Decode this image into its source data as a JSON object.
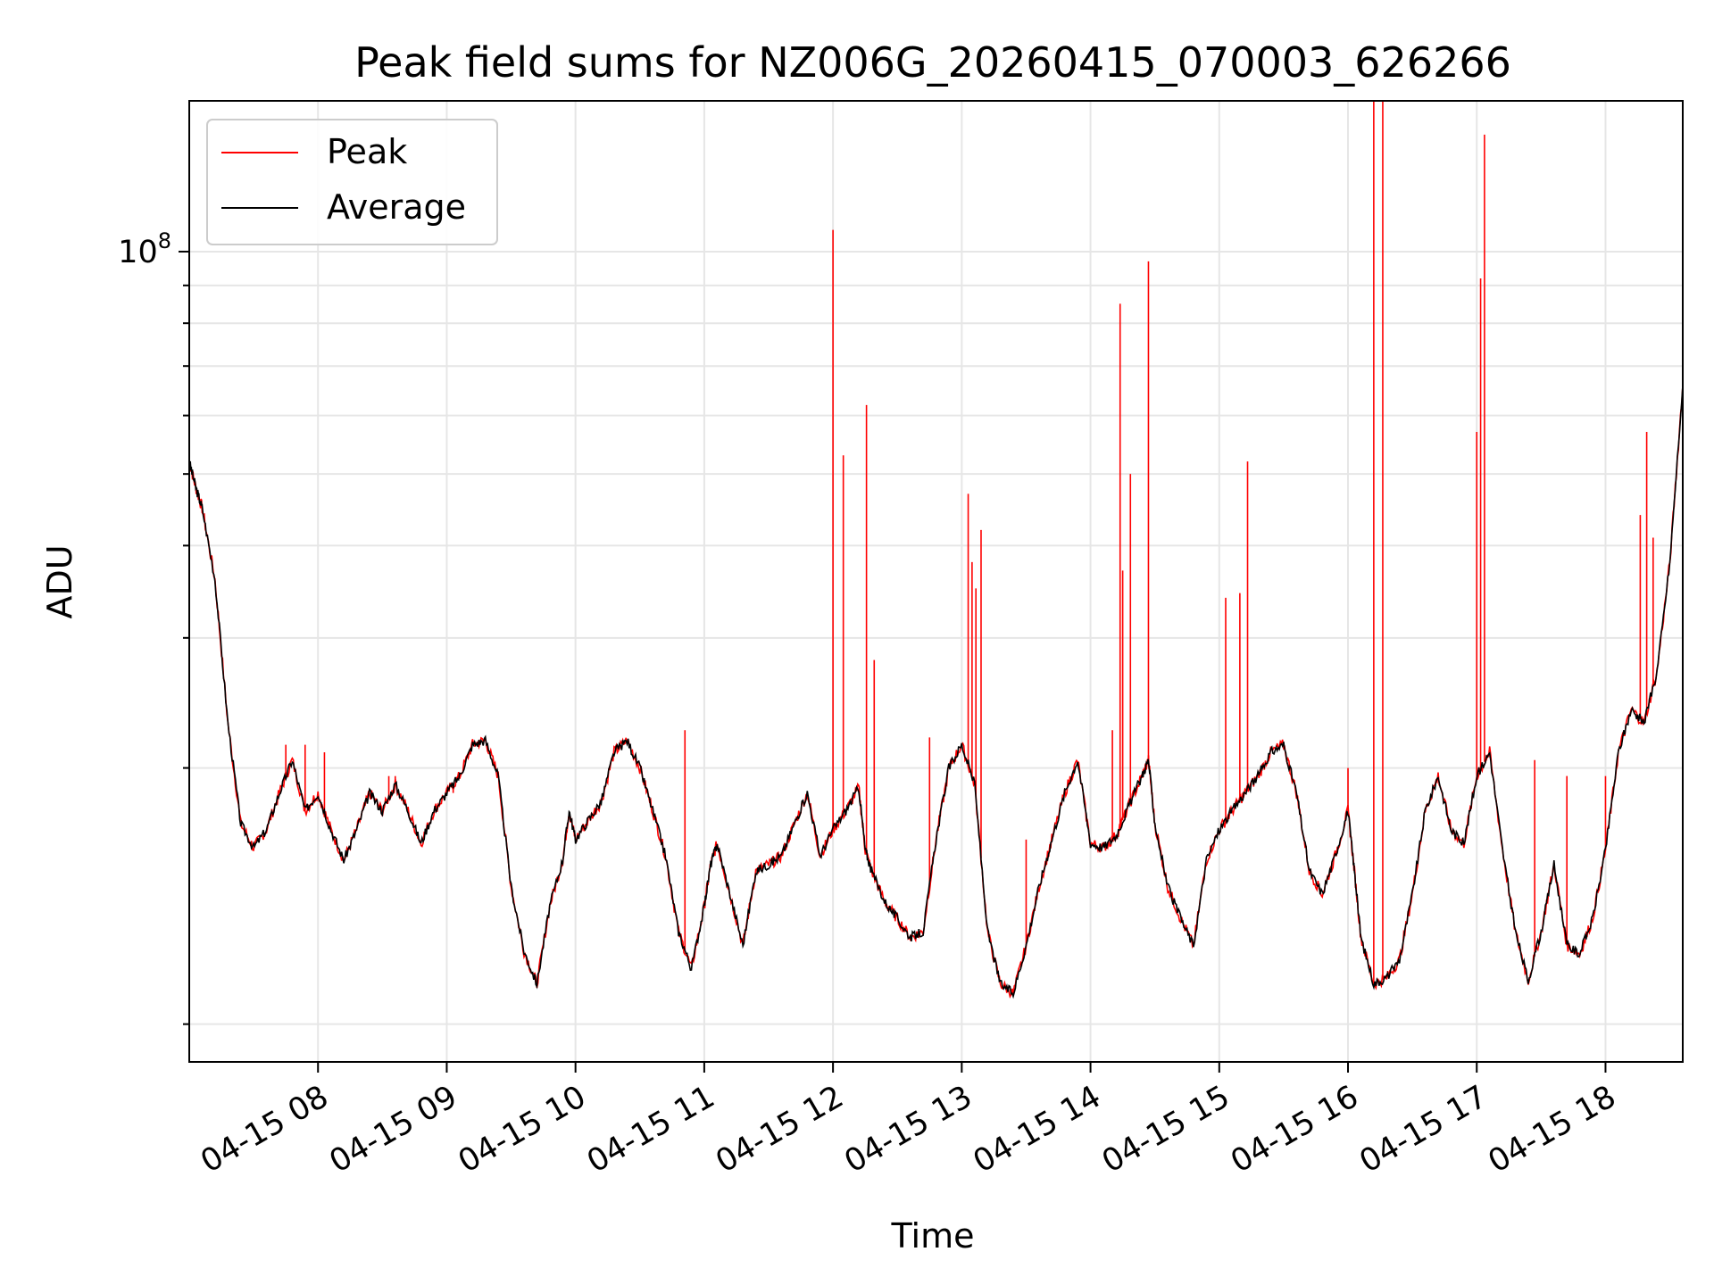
{
  "chart_data": {
    "type": "line",
    "title": "Peak field sums for NZ006G_20260415_070003_626266",
    "xlabel": "Time",
    "ylabel": "ADU",
    "yscale": "log",
    "xlim": [
      7.0,
      18.6
    ],
    "ylim": [
      8000000,
      160000000
    ],
    "grid": true,
    "legend_position": "top-left",
    "y_tick_labels": [
      {
        "value": 100000000,
        "base": "10",
        "exponent": "8"
      }
    ],
    "y_minor_ticks": [
      9000000,
      20000000,
      30000000,
      40000000,
      50000000,
      60000000,
      70000000,
      80000000,
      90000000
    ],
    "x_ticks": [
      {
        "value": 8,
        "label": "04-15 08"
      },
      {
        "value": 9,
        "label": "04-15 09"
      },
      {
        "value": 10,
        "label": "04-15 10"
      },
      {
        "value": 11,
        "label": "04-15 11"
      },
      {
        "value": 12,
        "label": "04-15 12"
      },
      {
        "value": 13,
        "label": "04-15 13"
      },
      {
        "value": 14,
        "label": "04-15 14"
      },
      {
        "value": 15,
        "label": "04-15 15"
      },
      {
        "value": 16,
        "label": "04-15 16"
      },
      {
        "value": 17,
        "label": "04-15 17"
      },
      {
        "value": 18,
        "label": "04-15 18"
      }
    ],
    "series": [
      {
        "name": "Peak",
        "color": "#ff0000",
        "spikes": [
          {
            "x": 7.75,
            "y": 21500000
          },
          {
            "x": 7.9,
            "y": 21500000
          },
          {
            "x": 8.05,
            "y": 21000000
          },
          {
            "x": 8.55,
            "y": 19500000
          },
          {
            "x": 8.6,
            "y": 19500000
          },
          {
            "x": 9.05,
            "y": 18500000
          },
          {
            "x": 10.85,
            "y": 22500000
          },
          {
            "x": 12.0,
            "y": 107000000
          },
          {
            "x": 12.08,
            "y": 53000000
          },
          {
            "x": 12.26,
            "y": 62000000
          },
          {
            "x": 12.32,
            "y": 28000000
          },
          {
            "x": 12.75,
            "y": 22000000
          },
          {
            "x": 13.05,
            "y": 47000000
          },
          {
            "x": 13.08,
            "y": 38000000
          },
          {
            "x": 13.11,
            "y": 35000000
          },
          {
            "x": 13.15,
            "y": 42000000
          },
          {
            "x": 13.5,
            "y": 16000000
          },
          {
            "x": 14.17,
            "y": 22500000
          },
          {
            "x": 14.23,
            "y": 85000000
          },
          {
            "x": 14.25,
            "y": 37000000
          },
          {
            "x": 14.31,
            "y": 50000000
          },
          {
            "x": 14.45,
            "y": 97000000
          },
          {
            "x": 15.05,
            "y": 34000000
          },
          {
            "x": 15.16,
            "y": 34500000
          },
          {
            "x": 15.22,
            "y": 52000000
          },
          {
            "x": 16.0,
            "y": 20000000
          },
          {
            "x": 16.2,
            "y": 160000000
          },
          {
            "x": 16.27,
            "y": 160000000
          },
          {
            "x": 17.0,
            "y": 57000000
          },
          {
            "x": 17.03,
            "y": 92000000
          },
          {
            "x": 17.06,
            "y": 144000000
          },
          {
            "x": 17.45,
            "y": 20500000
          },
          {
            "x": 17.7,
            "y": 19500000
          },
          {
            "x": 18.0,
            "y": 19500000
          },
          {
            "x": 18.27,
            "y": 44000000
          },
          {
            "x": 18.32,
            "y": 57000000
          },
          {
            "x": 18.37,
            "y": 41000000
          }
        ]
      },
      {
        "name": "Average",
        "color": "#000000",
        "x": [
          7.0,
          7.05,
          7.1,
          7.2,
          7.3,
          7.4,
          7.5,
          7.6,
          7.7,
          7.8,
          7.9,
          8.0,
          8.1,
          8.2,
          8.3,
          8.4,
          8.5,
          8.6,
          8.7,
          8.8,
          8.9,
          9.0,
          9.1,
          9.2,
          9.3,
          9.4,
          9.5,
          9.6,
          9.7,
          9.8,
          9.9,
          9.95,
          10.0,
          10.1,
          10.2,
          10.3,
          10.4,
          10.5,
          10.6,
          10.7,
          10.8,
          10.9,
          11.0,
          11.05,
          11.1,
          11.2,
          11.3,
          11.4,
          11.5,
          11.6,
          11.7,
          11.8,
          11.9,
          12.0,
          12.1,
          12.2,
          12.25,
          12.3,
          12.4,
          12.5,
          12.6,
          12.7,
          12.8,
          12.9,
          13.0,
          13.1,
          13.2,
          13.3,
          13.4,
          13.5,
          13.6,
          13.7,
          13.8,
          13.9,
          14.0,
          14.1,
          14.2,
          14.3,
          14.4,
          14.45,
          14.5,
          14.6,
          14.7,
          14.8,
          14.9,
          15.0,
          15.1,
          15.2,
          15.3,
          15.4,
          15.5,
          15.6,
          15.7,
          15.8,
          15.9,
          16.0,
          16.05,
          16.1,
          16.2,
          16.3,
          16.4,
          16.5,
          16.6,
          16.7,
          16.8,
          16.9,
          17.0,
          17.1,
          17.2,
          17.3,
          17.4,
          17.5,
          17.6,
          17.7,
          17.8,
          17.9,
          18.0,
          18.1,
          18.2,
          18.3,
          18.4,
          18.5,
          18.6
        ],
        "y": [
          52000000,
          48000000,
          45000000,
          36000000,
          23000000,
          16800000,
          15600000,
          16500000,
          18500000,
          20500000,
          17500000,
          18500000,
          16500000,
          15000000,
          16500000,
          18500000,
          17500000,
          19000000,
          17500000,
          15800000,
          17500000,
          18500000,
          19500000,
          21500000,
          21800000,
          19500000,
          13800000,
          11300000,
          10200000,
          13000000,
          15000000,
          17500000,
          16000000,
          17000000,
          18000000,
          21000000,
          21800000,
          20000000,
          17500000,
          15200000,
          12000000,
          10700000,
          13000000,
          14800000,
          15800000,
          13500000,
          11500000,
          14500000,
          14800000,
          15200000,
          16800000,
          18500000,
          15200000,
          16500000,
          17500000,
          18800000,
          15500000,
          14500000,
          13200000,
          12500000,
          11800000,
          12000000,
          16000000,
          20000000,
          21500000,
          19000000,
          12000000,
          10200000,
          9900000,
          11500000,
          13800000,
          16000000,
          18500000,
          20500000,
          15800000,
          15600000,
          16200000,
          17800000,
          19500000,
          20500000,
          16800000,
          13800000,
          12500000,
          11500000,
          15000000,
          16500000,
          17500000,
          18500000,
          19500000,
          21000000,
          21500000,
          18500000,
          14500000,
          13500000,
          15200000,
          17500000,
          14500000,
          11800000,
          10200000,
          10400000,
          11000000,
          13500000,
          17500000,
          19500000,
          16500000,
          15800000,
          19500000,
          21000000,
          15500000,
          12000000,
          10300000,
          12000000,
          14800000,
          11500000,
          11200000,
          12500000,
          15500000,
          21000000,
          24000000,
          23000000,
          27000000,
          38000000,
          66000000
        ]
      }
    ]
  }
}
